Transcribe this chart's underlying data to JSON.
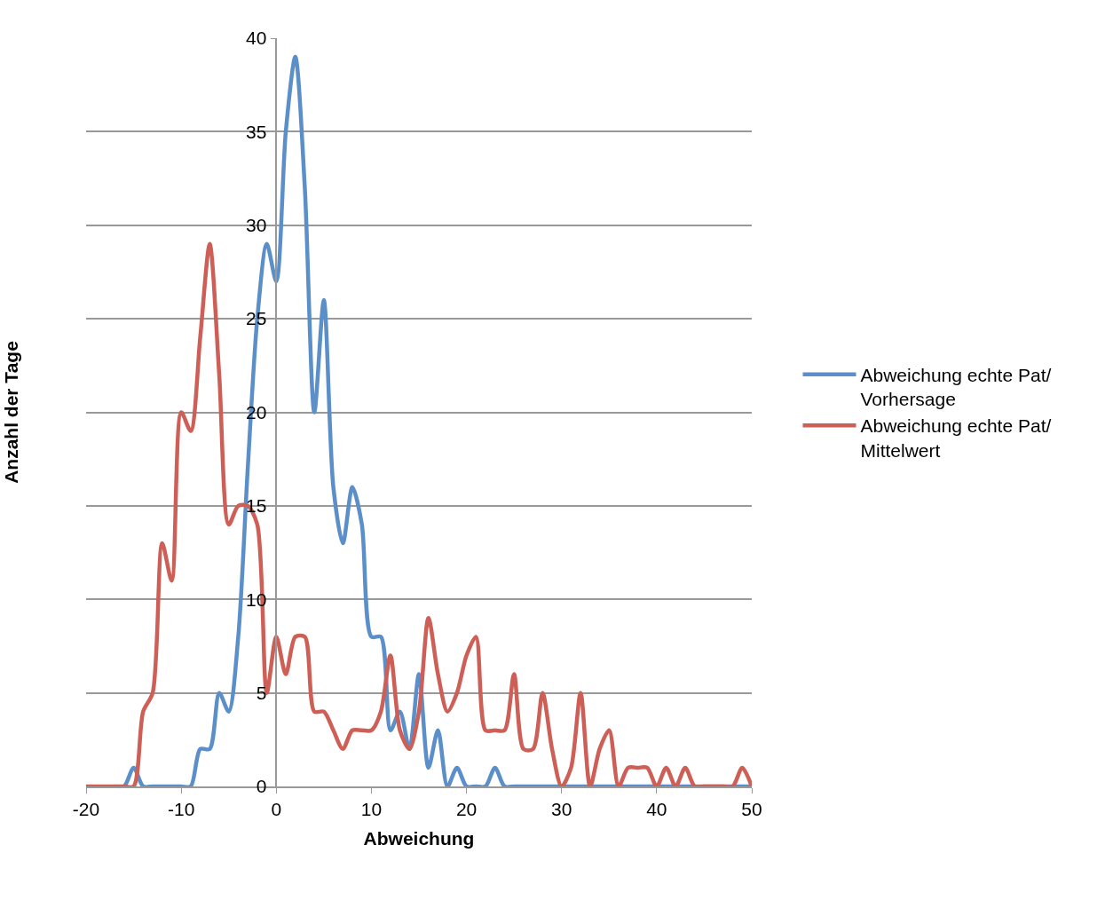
{
  "chart_data": {
    "type": "line",
    "xlabel": "Abweichung",
    "ylabel": "Anzahl der Tage",
    "x": [
      -20,
      -19,
      -18,
      -17,
      -16,
      -15,
      -14,
      -13,
      -12,
      -11,
      -10,
      -9,
      -8,
      -7,
      -6,
      -5,
      -4,
      -3,
      -2,
      -1,
      0,
      1,
      2,
      3,
      4,
      5,
      6,
      7,
      8,
      9,
      10,
      11,
      12,
      13,
      14,
      15,
      16,
      17,
      18,
      19,
      20,
      21,
      22,
      23,
      24,
      25,
      26,
      27,
      28,
      29,
      30,
      31,
      32,
      33,
      34,
      35,
      36,
      37,
      38,
      39,
      40,
      41,
      42,
      43,
      44,
      45,
      46,
      47,
      48,
      49,
      50
    ],
    "series": [
      {
        "name": "Abweichung echte Pat/ Vorhersage",
        "color": "#5b8fc9",
        "values": [
          null,
          null,
          null,
          0,
          0,
          1,
          0,
          0,
          0,
          0,
          0,
          0,
          2,
          2,
          5,
          4,
          8,
          17,
          25,
          29,
          27,
          35,
          39,
          32,
          20,
          26,
          16,
          13,
          16,
          14,
          8,
          8,
          3,
          4,
          2,
          6,
          1,
          3,
          0,
          1,
          0,
          0,
          0,
          1,
          0,
          0,
          0,
          0,
          0,
          0,
          0,
          0,
          0,
          0,
          0,
          0,
          0,
          0,
          0,
          0,
          0,
          0,
          0,
          0,
          0,
          0,
          0,
          0,
          0,
          0,
          0
        ]
      },
      {
        "name": "Abweichung echte Pat/ Mittelwert",
        "color": "#cd5f57",
        "values": [
          0,
          0,
          0,
          0,
          0,
          0,
          4,
          5,
          13,
          11,
          20,
          19,
          24,
          29,
          22,
          14,
          15,
          15,
          14,
          5,
          8,
          6,
          8,
          8,
          4,
          4,
          3,
          2,
          3,
          3,
          3,
          4,
          7,
          3,
          2,
          4,
          9,
          6,
          4,
          5,
          7,
          8,
          3,
          3,
          3,
          6,
          2,
          2,
          5,
          2,
          0,
          1,
          5,
          0,
          2,
          3,
          0,
          1,
          1,
          1,
          0,
          1,
          0,
          1,
          0,
          0,
          0,
          0,
          0,
          1,
          0
        ]
      }
    ],
    "xlim": [
      -20,
      50
    ],
    "xticks": [
      -20,
      -10,
      0,
      10,
      20,
      30,
      40,
      50
    ],
    "ylim": [
      0,
      40
    ],
    "yticks": [
      0,
      5,
      10,
      15,
      20,
      25,
      30,
      35,
      40
    ],
    "grid": "y",
    "legend": "right",
    "marker": "none",
    "line_style": "solid"
  }
}
